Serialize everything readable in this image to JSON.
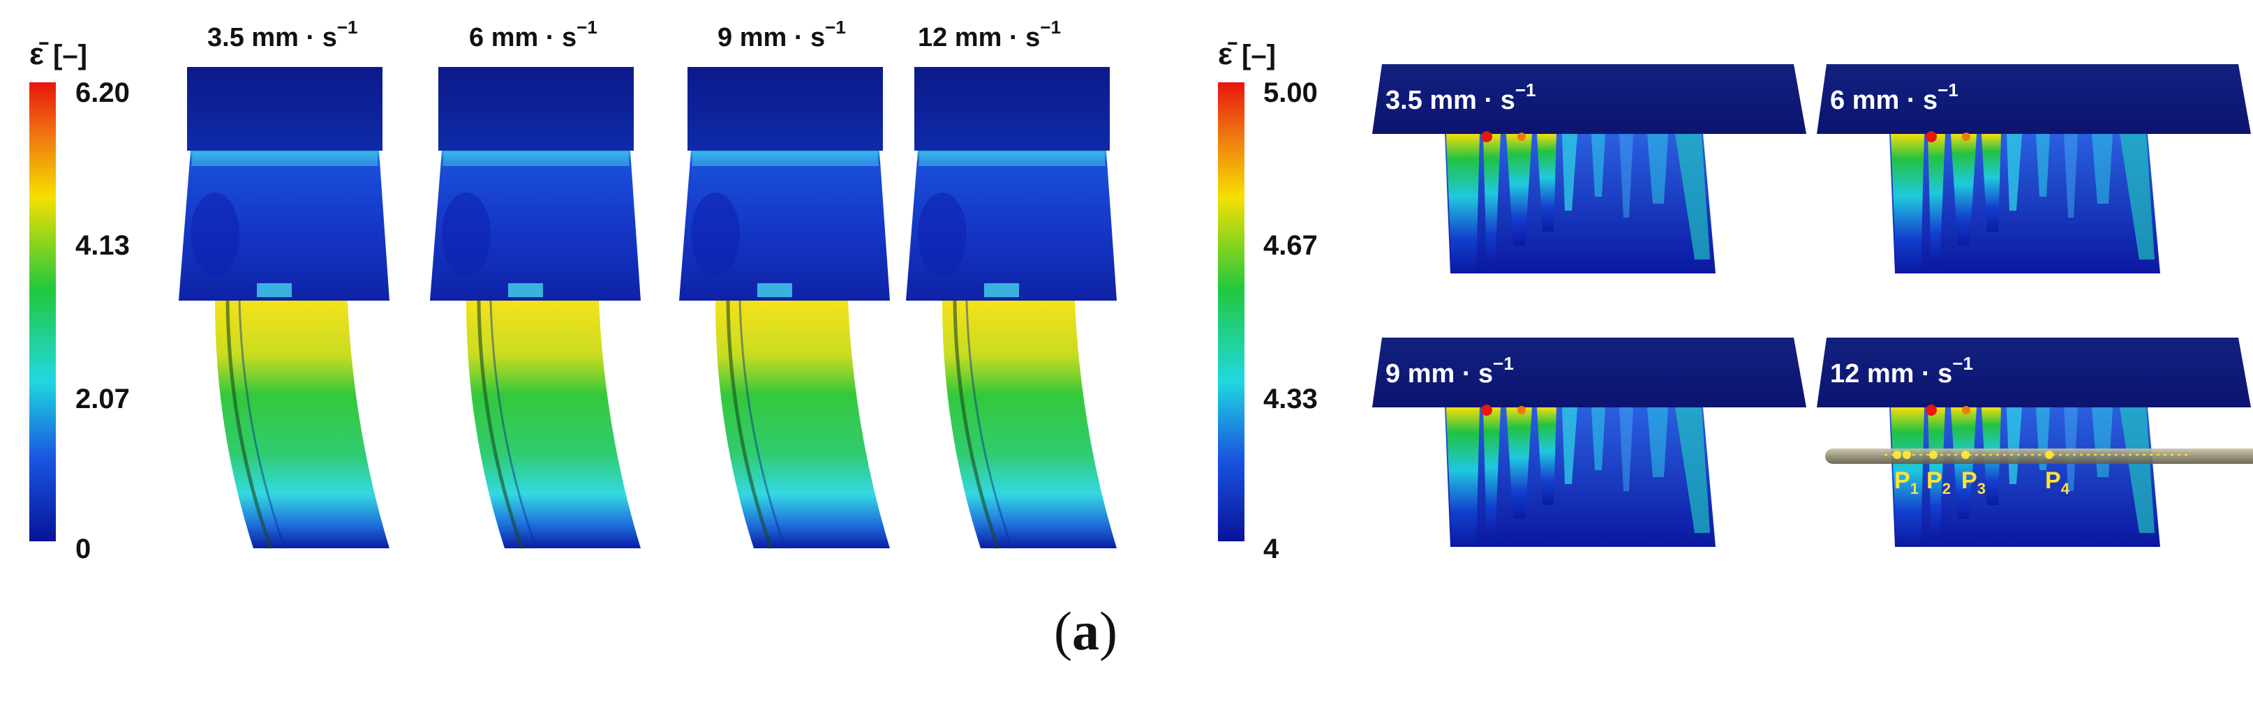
{
  "left_panel": {
    "colorbar": {
      "symbol": "ε̄",
      "unit": "[–]",
      "ticks": [
        "6.20",
        "4.13",
        "2.07",
        "0"
      ]
    },
    "speeds": [
      "3.5 mm · s",
      "6 mm · s",
      "9 mm · s",
      "12 mm · s"
    ],
    "speed_exponent": "−1"
  },
  "right_panel": {
    "colorbar": {
      "symbol": "ε̄",
      "unit": "[–]",
      "ticks": [
        "5.00",
        "4.67",
        "4.33",
        "4"
      ]
    },
    "speeds": [
      "3.5 mm · s",
      "6 mm · s",
      "9 mm · s",
      "12 mm · s"
    ],
    "speed_exponent": "−1",
    "points": [
      {
        "label": "P",
        "sub": "1"
      },
      {
        "label": "P",
        "sub": "2"
      },
      {
        "label": "P",
        "sub": "3"
      },
      {
        "label": "P",
        "sub": "4"
      }
    ]
  },
  "caption": {
    "open": "(",
    "letter": "a",
    "close": ")"
  },
  "colors": {
    "jet_top": "#e8160e",
    "jet_upper": "#f5e000",
    "jet_mid": "#22c83c",
    "jet_lower": "#20d8e0",
    "jet_bottom": "#08139a",
    "die_dark": "#0c1f8c",
    "die_blue": "#1a35c8"
  }
}
